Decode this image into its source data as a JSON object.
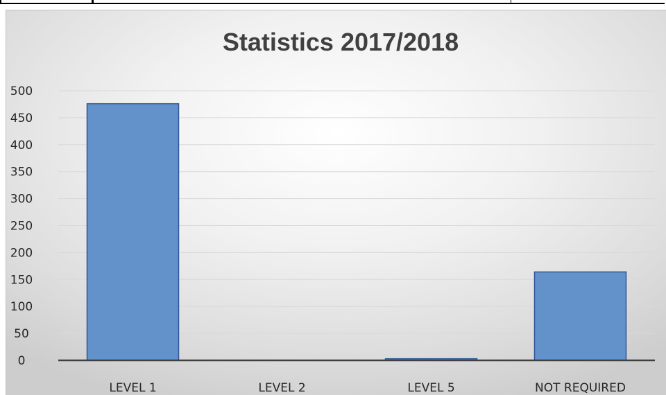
{
  "chart_data": {
    "type": "bar",
    "title": "Statistics 2017/2018",
    "xlabel": "",
    "ylabel": "",
    "categories": [
      "LEVEL 1",
      "LEVEL 2",
      "LEVEL 5",
      "NOT REQUIRED"
    ],
    "values": [
      476,
      0,
      3,
      164
    ],
    "ylim": [
      0,
      500
    ],
    "yticks": [
      "0",
      "50",
      "100",
      "150",
      "200",
      "250",
      "300",
      "350",
      "400",
      "450",
      "500"
    ],
    "grid": true,
    "legend": "none",
    "colors": {
      "bar_fill": "#6391c9",
      "bar_stroke": "#2f5597",
      "gridline": "#d9d9d9",
      "axis_line": "#404040"
    }
  }
}
